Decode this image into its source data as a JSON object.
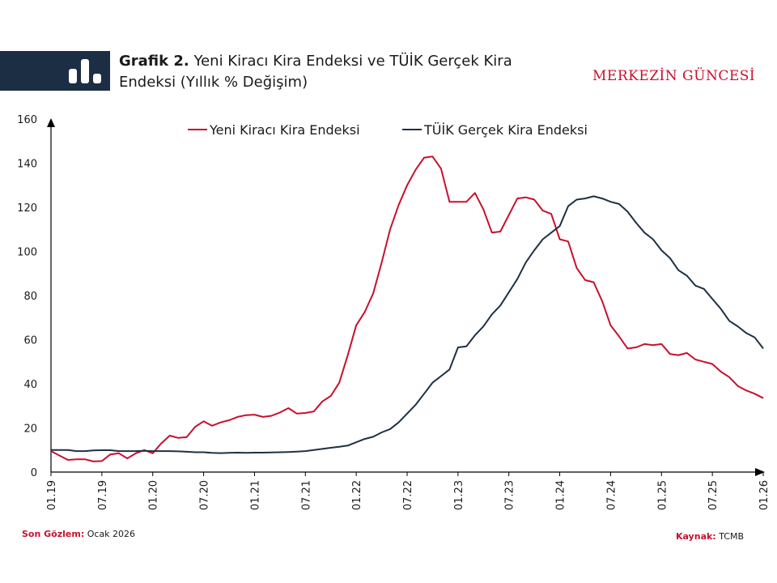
{
  "header": {
    "title_prefix": "Grafik 2.",
    "title_text": "Yeni Kiracı Kira Endeksi ve TÜİK Gerçek Kira Endeksi (Yıllık % Değişim)",
    "brand": "MERKEZİN GÜNCESİ",
    "icon": "bar-chart-icon"
  },
  "footer": {
    "last_obs_label": "Son Gözlem:",
    "last_obs_value": "Ocak 2026",
    "source_label": "Kaynak:",
    "source_value": "TCMB"
  },
  "colors": {
    "accent": "#c8102e",
    "navy": "#1c2e44",
    "series_red": "#c8102e",
    "series_dark": "#1f3044"
  },
  "chart_data": {
    "type": "line",
    "title": "",
    "xlabel": "",
    "ylabel": "",
    "ylim": [
      0,
      160
    ],
    "yticks": [
      0,
      20,
      40,
      60,
      80,
      100,
      120,
      140,
      160
    ],
    "xticks": [
      "01.19",
      "07.19",
      "01.20",
      "07.20",
      "01.21",
      "07.21",
      "01.22",
      "07.22",
      "01.23",
      "07.23",
      "01.24",
      "07.24",
      "01.25",
      "07.25",
      "01.26"
    ],
    "grid": false,
    "legend_position": "top",
    "series": [
      {
        "name": "Yeni Kiracı Kira Endeksi",
        "color": "#c8102e",
        "values": [
          9.5,
          7.5,
          5.5,
          5.8,
          5.8,
          4.8,
          5,
          8,
          8.5,
          6.2,
          8.5,
          10,
          8.5,
          13,
          16.5,
          15.5,
          15.8,
          20.5,
          23,
          21,
          22.5,
          23.5,
          25,
          25.8,
          26,
          25,
          25.5,
          27,
          29,
          26.5,
          26.8,
          27.5,
          32,
          34.5,
          40.5,
          53,
          66.5,
          72.5,
          81,
          95,
          110,
          121,
          130,
          137,
          142.5,
          143,
          137.5,
          122.5,
          122.5,
          122.5,
          126.5,
          119,
          108.5,
          109,
          116.5,
          124,
          124.5,
          123.5,
          118.5,
          117,
          105.5,
          104.5,
          92.5,
          87,
          86,
          77.5,
          66.5,
          61.5,
          56,
          56.5,
          58,
          57.5,
          58,
          53.5,
          53,
          54,
          51,
          50,
          49,
          45.5,
          43,
          39,
          37,
          35.5,
          33.5
        ]
      },
      {
        "name": "TÜİK Gerçek Kira Endeksi",
        "color": "#1f3044",
        "values": [
          10,
          10,
          10,
          9.5,
          9.5,
          9.8,
          9.9,
          9.9,
          9.5,
          9.5,
          9.5,
          9.6,
          9.5,
          9.5,
          9.5,
          9.4,
          9.2,
          9,
          9,
          8.7,
          8.6,
          8.7,
          8.8,
          8.7,
          8.8,
          8.8,
          8.9,
          9,
          9.1,
          9.3,
          9.5,
          10,
          10.5,
          11,
          11.5,
          12,
          13.5,
          15,
          16,
          18,
          19.5,
          22.5,
          26.5,
          30.5,
          35.5,
          40.5,
          43.5,
          46.5,
          56.5,
          57,
          62,
          66,
          71.5,
          75.5,
          81.5,
          87.5,
          95,
          100.5,
          105.5,
          108.5,
          111.5,
          120.5,
          123.5,
          124,
          125,
          124,
          122.5,
          121.5,
          118,
          113,
          108.5,
          105.5,
          100.5,
          97,
          91.5,
          89,
          84.5,
          83,
          78.5,
          74,
          68.5,
          66,
          63,
          61,
          56
        ]
      }
    ]
  }
}
